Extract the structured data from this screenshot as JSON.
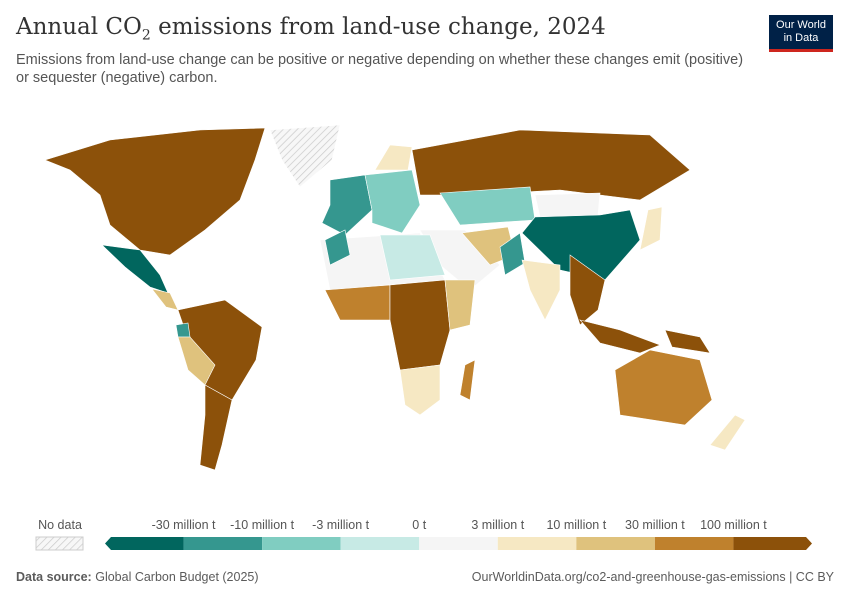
{
  "header": {
    "title_pre": "Annual CO",
    "title_sub": "2",
    "title_post": " emissions from land-use change, 2024",
    "subtitle": "Emissions from land-use change can be positive or negative depending on whether these changes emit (positive) or sequester (negative) carbon.",
    "logo_line1": "Our World",
    "logo_line2": "in Data"
  },
  "legend": {
    "no_data_label": "No data",
    "ticks": [
      "-30 million t",
      "-10 million t",
      "-3 million t",
      "0 t",
      "3 million t",
      "10 million t",
      "30 million t",
      "100 million t"
    ],
    "colors": [
      "#01665e",
      "#35978f",
      "#80cdc1",
      "#c7eae5",
      "#f5f5f5",
      "#f6e8c3",
      "#dfc27d",
      "#bf812d",
      "#8c510a"
    ],
    "no_data_color": "#e6e6e6"
  },
  "map_regions": [
    {
      "name": "north-america",
      "bin": 8
    },
    {
      "name": "greenland",
      "bin": -1
    },
    {
      "name": "mexico",
      "bin": 0
    },
    {
      "name": "central-america",
      "bin": 6
    },
    {
      "name": "south-america",
      "bin": 8
    },
    {
      "name": "ecuador",
      "bin": 1
    },
    {
      "name": "peru-bolivia",
      "bin": 6
    },
    {
      "name": "argentina",
      "bin": 8
    },
    {
      "name": "western-europe",
      "bin": 1
    },
    {
      "name": "eastern-europe",
      "bin": 2
    },
    {
      "name": "scandinavia",
      "bin": 5
    },
    {
      "name": "russia",
      "bin": 8
    },
    {
      "name": "kazakhstan",
      "bin": 2
    },
    {
      "name": "mongolia",
      "bin": 4
    },
    {
      "name": "china",
      "bin": 0
    },
    {
      "name": "japan",
      "bin": 5
    },
    {
      "name": "middle-east",
      "bin": 4
    },
    {
      "name": "iran-afghanistan",
      "bin": 6
    },
    {
      "name": "pakistan",
      "bin": 1
    },
    {
      "name": "india",
      "bin": 5
    },
    {
      "name": "southeast-asia",
      "bin": 8
    },
    {
      "name": "indonesia",
      "bin": 8
    },
    {
      "name": "north-africa",
      "bin": 4
    },
    {
      "name": "libya-egypt",
      "bin": 3
    },
    {
      "name": "morocco",
      "bin": 1
    },
    {
      "name": "west-africa",
      "bin": 7
    },
    {
      "name": "central-africa",
      "bin": 8
    },
    {
      "name": "east-africa",
      "bin": 6
    },
    {
      "name": "southern-africa",
      "bin": 5
    },
    {
      "name": "madagascar",
      "bin": 7
    },
    {
      "name": "australia",
      "bin": 7
    },
    {
      "name": "new-zealand",
      "bin": 5
    },
    {
      "name": "papua-new-guinea",
      "bin": 8
    }
  ],
  "footer": {
    "source_label": "Data source:",
    "source": "Global Carbon Budget (2025)",
    "url": "OurWorldinData.org/co2-and-greenhouse-gas-emissions | CC BY"
  }
}
